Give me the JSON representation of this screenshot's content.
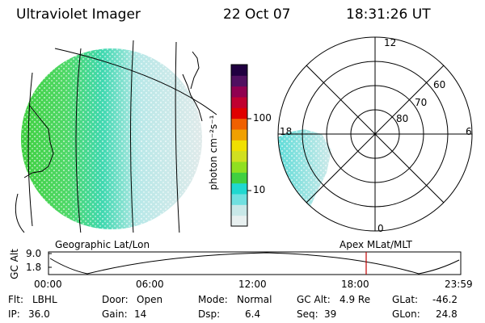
{
  "header": {
    "instrument": "Ultraviolet Imager",
    "date": "22 Oct 07",
    "time": "18:31:26 UT"
  },
  "colorbar": {
    "unit_label": "photon cm⁻²s⁻¹",
    "ticks": [
      "100",
      "10"
    ],
    "colors": [
      "#e8f0f0",
      "#c8e8e8",
      "#70e0e0",
      "#20d8d0",
      "#40d040",
      "#90e020",
      "#d0e020",
      "#f0e000",
      "#f0a000",
      "#f06000",
      "#e00000",
      "#c00030",
      "#900050",
      "#501060",
      "#200040"
    ]
  },
  "globe_panel": {
    "label": "Geographic Lat/Lon"
  },
  "polar_panel": {
    "label": "Apex MLat/MLT",
    "mlt_labels": {
      "top": "12",
      "left": "18",
      "right": "6",
      "bottom": "0"
    },
    "lat_labels": [
      "60",
      "70",
      "80"
    ]
  },
  "altitude_plot": {
    "ylabel": "GC Alt",
    "yticks": [
      "9.0",
      "1.8"
    ],
    "xticks": [
      "00:00",
      "06:00",
      "12:00",
      "18:00",
      "23:59"
    ],
    "marker_time": "18:31"
  },
  "footer": {
    "flt_label": "Flt:",
    "flt_value": "LBHL",
    "ip_label": "IP:",
    "ip_value": "36.0",
    "door_label": "Door:",
    "door_value": "Open",
    "gain_label": "Gain:",
    "gain_value": "14",
    "mode_label": "Mode:",
    "mode_value": "Normal",
    "dsp_label": "Dsp:",
    "dsp_value": "6.4",
    "gcalt_label": "GC Alt:",
    "gcalt_value": "4.9 Re",
    "seq_label": "Seq:",
    "seq_value": "39",
    "glat_label": "GLat:",
    "glat_value": "-46.2",
    "glon_label": "GLon:",
    "glon_value": "24.8"
  }
}
